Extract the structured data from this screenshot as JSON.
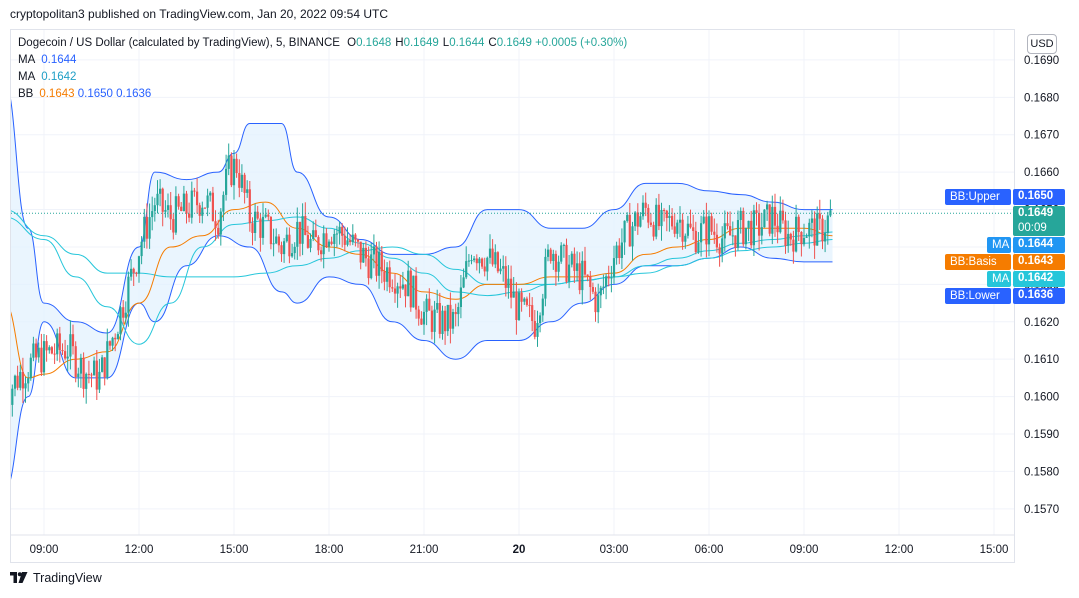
{
  "header": {
    "published_by": "cryptopolitan3 published on TradingView.com, Jan 20, 2022 09:54 UTC"
  },
  "legend": {
    "symbol": "Dogecoin / US Dollar (calculated by TradingView), 5, BINANCE",
    "ohlc": [
      {
        "key": "O",
        "value": "0.1648"
      },
      {
        "key": "H",
        "value": "0.1649"
      },
      {
        "key": "L",
        "value": "0.1644"
      },
      {
        "key": "C",
        "value": "0.1649"
      }
    ],
    "change": "+0.0005 (+0.30%)",
    "ma1_label": "MA",
    "ma1_value": "0.1644",
    "ma2_label": "MA",
    "ma2_value": "0.1642",
    "bb_label": "BB",
    "bb_basis": "0.1643",
    "bb_upper": "0.1650",
    "bb_lower": "0.1636"
  },
  "currency": "USD",
  "price_labels": [
    {
      "tag": "BB:Upper",
      "value": "0.1650",
      "color": "#2962ff"
    },
    {
      "tag": "",
      "value": "0.1649",
      "sub": "00:09",
      "color": "#26a69a"
    },
    {
      "tag": "MA",
      "value": "0.1644",
      "color": "#2196f3"
    },
    {
      "tag": "BB:Basis",
      "value": "0.1643",
      "color": "#f57c00"
    },
    {
      "tag": "MA",
      "value": "0.1642",
      "color": "#26c6da"
    },
    {
      "tag": "BB:Lower",
      "value": "0.1636",
      "color": "#2962ff"
    }
  ],
  "footer": {
    "brand": "TradingView",
    "logo": "tradingview-logo-icon"
  },
  "colors": {
    "up": "#26a69a",
    "down": "#ef5350",
    "bb_band": "#2962ff",
    "bb_fill": "#e3f2fd",
    "bb_basis": "#f57c00",
    "ma_fast": "#26c6da",
    "ma_slow": "#26c6da",
    "grid": "#f0f3fa"
  },
  "chart_data": {
    "type": "line",
    "title": "Dogecoin / US Dollar (calculated by TradingView), 5, BINANCE",
    "ylim": [
      0.1563,
      0.1698
    ],
    "y_ticks": [
      "0.1690",
      "0.1680",
      "0.1670",
      "0.1660",
      "0.1650",
      "0.1640",
      "0.1630",
      "0.1620",
      "0.1610",
      "0.1600",
      "0.1590",
      "0.1580",
      "0.1570"
    ],
    "x_ticks": [
      "09:00",
      "12:00",
      "15:00",
      "18:00",
      "21:00",
      "20",
      "03:00",
      "06:00",
      "09:00",
      "12:00",
      "15:00"
    ],
    "grid": true,
    "last_price": 0.1649,
    "series": [
      {
        "name": "BB upper",
        "x": [
          "07:45",
          "08:30",
          "09:00",
          "10:00",
          "11:00",
          "12:00",
          "12:30",
          "13:30",
          "14:30",
          "15:00",
          "15:30",
          "16:30",
          "17:00",
          "18:00",
          "19:00",
          "20:00",
          "21:00",
          "22:00",
          "23:00",
          "00:00",
          "01:00",
          "02:00",
          "03:00",
          "04:00",
          "05:00",
          "06:00",
          "07:00",
          "08:00",
          "09:00",
          "09:54"
        ],
        "values": [
          0.1684,
          0.1645,
          0.1625,
          0.162,
          0.1617,
          0.164,
          0.166,
          0.1658,
          0.166,
          0.1665,
          0.1673,
          0.1673,
          0.166,
          0.1648,
          0.1642,
          0.1638,
          0.1638,
          0.164,
          0.165,
          0.165,
          0.1645,
          0.1645,
          0.165,
          0.1657,
          0.1657,
          0.1655,
          0.1654,
          0.1652,
          0.165,
          0.165
        ]
      },
      {
        "name": "BB basis",
        "x": [
          "07:45",
          "08:30",
          "09:00",
          "10:00",
          "11:00",
          "12:00",
          "13:00",
          "14:00",
          "15:00",
          "16:00",
          "17:00",
          "18:00",
          "19:00",
          "20:00",
          "21:00",
          "22:00",
          "23:00",
          "00:00",
          "01:00",
          "02:00",
          "03:00",
          "04:00",
          "05:00",
          "06:00",
          "07:00",
          "08:00",
          "09:00",
          "09:54"
        ],
        "values": [
          0.1625,
          0.1605,
          0.1606,
          0.161,
          0.1612,
          0.1625,
          0.164,
          0.1643,
          0.165,
          0.1652,
          0.1645,
          0.164,
          0.1638,
          0.1633,
          0.1628,
          0.1626,
          0.163,
          0.163,
          0.1632,
          0.1632,
          0.1633,
          0.1638,
          0.164,
          0.1642,
          0.1645,
          0.1645,
          0.1645,
          0.1643
        ]
      },
      {
        "name": "BB lower",
        "x": [
          "07:45",
          "08:30",
          "09:00",
          "10:00",
          "11:00",
          "12:00",
          "12:30",
          "13:30",
          "14:30",
          "15:30",
          "16:30",
          "17:00",
          "18:00",
          "19:00",
          "20:00",
          "21:00",
          "22:00",
          "23:00",
          "00:00",
          "01:00",
          "02:00",
          "03:00",
          "04:00",
          "05:00",
          "06:00",
          "07:00",
          "08:00",
          "09:00",
          "09:54"
        ],
        "values": [
          0.1575,
          0.16,
          0.162,
          0.1605,
          0.1605,
          0.1625,
          0.162,
          0.1635,
          0.1643,
          0.164,
          0.1628,
          0.1625,
          0.1632,
          0.163,
          0.162,
          0.1615,
          0.161,
          0.1615,
          0.1615,
          0.162,
          0.1625,
          0.163,
          0.1635,
          0.1635,
          0.1637,
          0.164,
          0.1637,
          0.1636,
          0.1636
        ]
      },
      {
        "name": "MA fast",
        "x": [
          "07:45",
          "09:00",
          "10:00",
          "11:00",
          "12:00",
          "13:00",
          "14:00",
          "15:00",
          "16:00",
          "17:00",
          "18:00",
          "19:00",
          "20:00",
          "21:00",
          "22:00",
          "23:00",
          "00:00",
          "01:00",
          "02:00",
          "03:00",
          "04:00",
          "05:00",
          "06:00",
          "07:00",
          "08:00",
          "09:00",
          "09:54"
        ],
        "values": [
          0.1648,
          0.1642,
          0.1632,
          0.1624,
          0.1614,
          0.1625,
          0.164,
          0.1646,
          0.1647,
          0.1648,
          0.1645,
          0.1641,
          0.1637,
          0.1633,
          0.1628,
          0.1627,
          0.1628,
          0.163,
          0.1631,
          0.1632,
          0.1635,
          0.1637,
          0.1639,
          0.1641,
          0.1642,
          0.1643,
          0.1644
        ]
      },
      {
        "name": "MA slow",
        "x": [
          "07:45",
          "09:00",
          "10:00",
          "11:00",
          "12:00",
          "13:00",
          "14:00",
          "15:00",
          "16:00",
          "17:00",
          "18:00",
          "19:00",
          "20:00",
          "21:00",
          "22:00",
          "23:00",
          "00:00",
          "01:00",
          "02:00",
          "03:00",
          "04:00",
          "05:00",
          "06:00",
          "07:00",
          "08:00",
          "09:00",
          "09:54"
        ],
        "values": [
          0.165,
          0.1643,
          0.1638,
          0.1633,
          0.1633,
          0.1632,
          0.1632,
          0.1632,
          0.1633,
          0.1635,
          0.1637,
          0.1639,
          0.164,
          0.1638,
          0.1634,
          0.163,
          0.163,
          0.163,
          0.1631,
          0.1632,
          0.1633,
          0.1635,
          0.1637,
          0.1639,
          0.164,
          0.1641,
          0.1642
        ]
      },
      {
        "name": "Close",
        "x": [
          "07:45",
          "08:15",
          "08:45",
          "09:15",
          "09:45",
          "10:15",
          "10:45",
          "11:15",
          "11:45",
          "12:05",
          "12:30",
          "13:00",
          "13:30",
          "14:00",
          "14:30",
          "14:50",
          "15:05",
          "15:30",
          "16:00",
          "16:30",
          "17:00",
          "17:30",
          "18:00",
          "18:30",
          "19:00",
          "19:30",
          "20:00",
          "20:30",
          "21:00",
          "21:30",
          "22:00",
          "22:30",
          "23:00",
          "23:30",
          "00:00",
          "00:30",
          "01:00",
          "01:30",
          "02:00",
          "02:30",
          "03:00",
          "03:30",
          "04:00",
          "04:30",
          "05:00",
          "05:30",
          "06:00",
          "06:30",
          "07:00",
          "07:30",
          "08:00",
          "08:30",
          "09:00",
          "09:30",
          "09:54"
        ],
        "values": [
          0.16,
          0.1606,
          0.161,
          0.1612,
          0.1613,
          0.1607,
          0.1605,
          0.1618,
          0.1632,
          0.1642,
          0.1652,
          0.1648,
          0.165,
          0.1653,
          0.1648,
          0.166,
          0.1662,
          0.1648,
          0.1645,
          0.164,
          0.1645,
          0.164,
          0.1645,
          0.1643,
          0.1638,
          0.1635,
          0.1633,
          0.163,
          0.1622,
          0.162,
          0.162,
          0.164,
          0.1637,
          0.1632,
          0.1623,
          0.162,
          0.164,
          0.1635,
          0.1632,
          0.1625,
          0.1638,
          0.1645,
          0.165,
          0.1645,
          0.1648,
          0.1643,
          0.1645,
          0.1642,
          0.1645,
          0.1645,
          0.1648,
          0.1643,
          0.1645,
          0.1644,
          0.1649
        ]
      }
    ]
  }
}
